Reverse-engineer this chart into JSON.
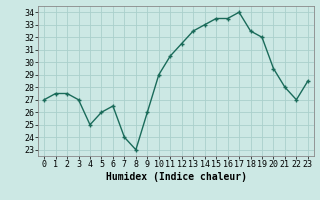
{
  "x": [
    0,
    1,
    2,
    3,
    4,
    5,
    6,
    7,
    8,
    9,
    10,
    11,
    12,
    13,
    14,
    15,
    16,
    17,
    18,
    19,
    20,
    21,
    22,
    23
  ],
  "y": [
    27,
    27.5,
    27.5,
    27,
    25,
    26,
    26.5,
    24,
    23,
    26,
    29,
    30.5,
    31.5,
    32.5,
    33,
    33.5,
    33.5,
    34,
    32.5,
    32,
    29.5,
    28,
    27,
    28.5
  ],
  "line_color": "#1a6b5a",
  "marker": "+",
  "bg_color": "#cce8e4",
  "grid_color": "#aad0cc",
  "xlabel": "Humidex (Indice chaleur)",
  "ylim": [
    22.5,
    34.5
  ],
  "xlim": [
    -0.5,
    23.5
  ],
  "yticks": [
    23,
    24,
    25,
    26,
    27,
    28,
    29,
    30,
    31,
    32,
    33,
    34
  ],
  "xticks": [
    0,
    1,
    2,
    3,
    4,
    5,
    6,
    7,
    8,
    9,
    10,
    11,
    12,
    13,
    14,
    15,
    16,
    17,
    18,
    19,
    20,
    21,
    22,
    23
  ],
  "label_fontsize": 7,
  "tick_fontsize": 6,
  "linewidth": 1.0,
  "markersize": 3.5,
  "spine_color": "#888888"
}
